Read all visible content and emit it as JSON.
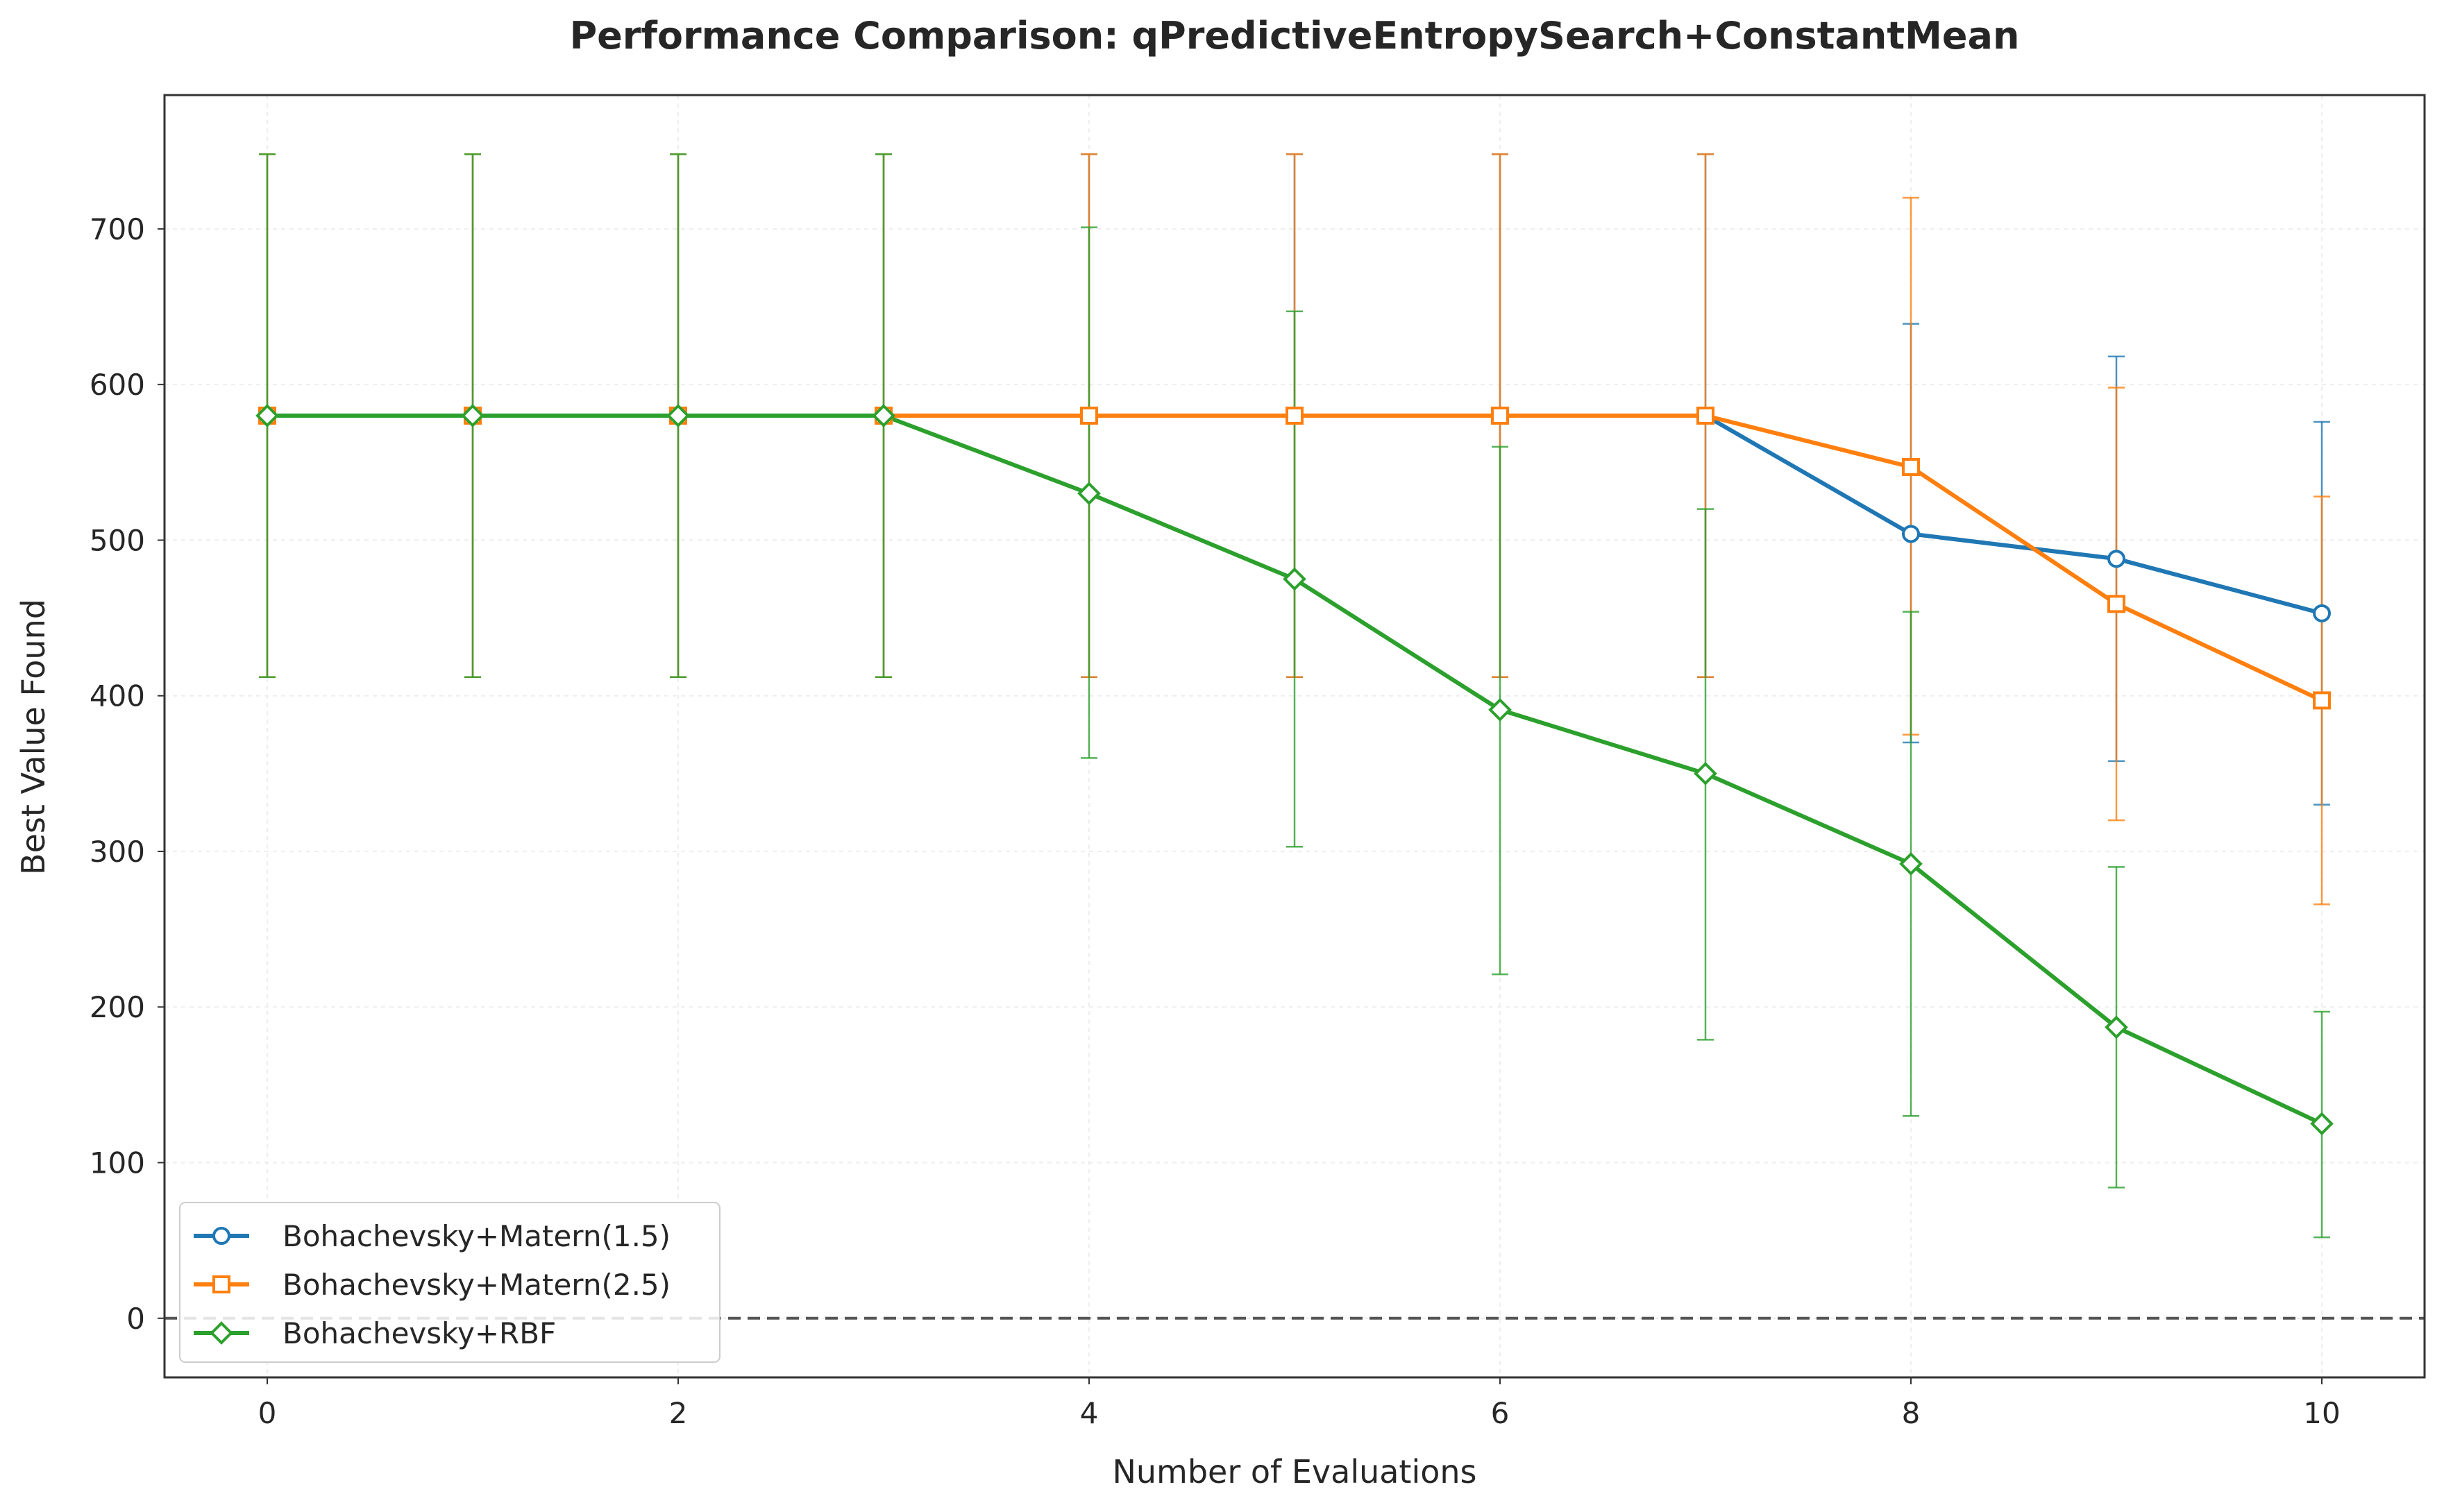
{
  "chart_data": {
    "type": "line",
    "title": "Performance Comparison: qPredictiveEntropySearch+ConstantMean",
    "xlabel": "Number of Evaluations",
    "ylabel": "Best Value Found",
    "xlim": [
      -0.5,
      10.5
    ],
    "ylim": [
      -38,
      786
    ],
    "xticks": [
      0,
      2,
      4,
      6,
      8,
      10
    ],
    "yticks": [
      0,
      100,
      200,
      300,
      400,
      500,
      600,
      700
    ],
    "grid": true,
    "legend_position": "lower-left",
    "reference_line": {
      "y": 0,
      "style": "dashed",
      "color": "#555555"
    },
    "x": [
      0,
      1,
      2,
      3,
      4,
      5,
      6,
      7,
      8,
      9,
      10
    ],
    "series": [
      {
        "name": "Bohachevsky+Matern(1.5)",
        "color": "#1f77b4",
        "marker": "circle",
        "values": [
          580,
          580,
          580,
          580,
          580,
          580,
          580,
          580,
          504,
          488,
          453
        ],
        "err_low": [
          412,
          412,
          412,
          412,
          412,
          412,
          412,
          412,
          370,
          358,
          330
        ],
        "err_high": [
          748,
          748,
          748,
          748,
          748,
          748,
          748,
          748,
          639,
          618,
          576
        ]
      },
      {
        "name": "Bohachevsky+Matern(2.5)",
        "color": "#ff7f0e",
        "marker": "square",
        "values": [
          580,
          580,
          580,
          580,
          580,
          580,
          580,
          580,
          547,
          459,
          397
        ],
        "err_low": [
          412,
          412,
          412,
          412,
          412,
          412,
          412,
          412,
          375,
          320,
          266
        ],
        "err_high": [
          748,
          748,
          748,
          748,
          748,
          748,
          748,
          748,
          720,
          598,
          528
        ]
      },
      {
        "name": "Bohachevsky+RBF",
        "color": "#2ca02c",
        "marker": "diamond",
        "values": [
          580,
          580,
          580,
          580,
          530,
          475,
          391,
          350,
          292,
          187,
          125
        ],
        "err_low": [
          412,
          412,
          412,
          412,
          360,
          303,
          221,
          179,
          130,
          84,
          52
        ],
        "err_high": [
          748,
          748,
          748,
          748,
          701,
          647,
          560,
          520,
          454,
          290,
          197
        ]
      }
    ]
  }
}
